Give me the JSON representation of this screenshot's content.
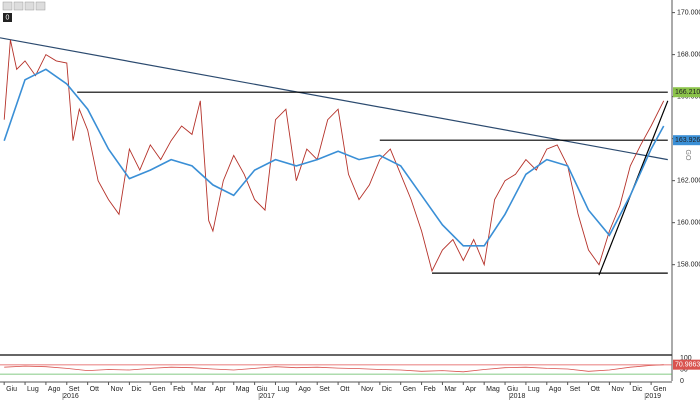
{
  "toolbar": {
    "badge": "0"
  },
  "chart_data": {
    "type": "line",
    "side_label": "GO",
    "xlim": [
      -0.2,
      32.0
    ],
    "ylim": [
      153.7,
      170.6
    ],
    "yticks": [
      {
        "value": 158,
        "label": "158.0000"
      },
      {
        "value": 160,
        "label": "160.0000"
      },
      {
        "value": 162,
        "label": "162.0000"
      },
      {
        "value": 164,
        "label": "164.0000"
      },
      {
        "value": 166,
        "label": "166.0000"
      },
      {
        "value": 168,
        "label": "168.0000"
      },
      {
        "value": 170,
        "label": "170.0000"
      }
    ],
    "xticks": [
      {
        "value": 0,
        "label": "Giu"
      },
      {
        "value": 1,
        "label": "Lug"
      },
      {
        "value": 2,
        "label": "Ago"
      },
      {
        "value": 3,
        "label": "Set"
      },
      {
        "value": 4,
        "label": "Ott"
      },
      {
        "value": 5,
        "label": "Nov"
      },
      {
        "value": 6,
        "label": "Dic"
      },
      {
        "value": 7,
        "label": "Gen"
      },
      {
        "value": 8,
        "label": "Feb"
      },
      {
        "value": 9,
        "label": "Mar"
      },
      {
        "value": 10,
        "label": "Apr"
      },
      {
        "value": 11,
        "label": "Mag"
      },
      {
        "value": 12,
        "label": "Giu"
      },
      {
        "value": 13,
        "label": "Lug"
      },
      {
        "value": 14,
        "label": "Ago"
      },
      {
        "value": 15,
        "label": "Set"
      },
      {
        "value": 16,
        "label": "Ott"
      },
      {
        "value": 17,
        "label": "Nov"
      },
      {
        "value": 18,
        "label": "Dic"
      },
      {
        "value": 19,
        "label": "Gen"
      },
      {
        "value": 20,
        "label": "Feb"
      },
      {
        "value": 21,
        "label": "Mar"
      },
      {
        "value": 22,
        "label": "Apr"
      },
      {
        "value": 23,
        "label": "Mag"
      },
      {
        "value": 24,
        "label": "Giu"
      },
      {
        "value": 25,
        "label": "Lug"
      },
      {
        "value": 26,
        "label": "Ago"
      },
      {
        "value": 27,
        "label": "Set"
      },
      {
        "value": 28,
        "label": "Ott"
      },
      {
        "value": 29,
        "label": "Nov"
      },
      {
        "value": 30,
        "label": "Dic"
      },
      {
        "value": 31,
        "label": "Gen"
      }
    ],
    "year_ticks": [
      {
        "value": 3.2,
        "label": "2016"
      },
      {
        "value": 12.6,
        "label": "2017"
      },
      {
        "value": 24.6,
        "label": "2018"
      },
      {
        "value": 31.1,
        "label": "2019"
      }
    ],
    "price": {
      "color": "#b5322a",
      "x": [
        0,
        0.3,
        0.6,
        1,
        1.5,
        2,
        2.5,
        3,
        3.3,
        3.6,
        4,
        4.5,
        5,
        5.5,
        6,
        6.5,
        7,
        7.5,
        8,
        8.5,
        9,
        9.4,
        9.8,
        10,
        10.5,
        11,
        11.5,
        12,
        12.5,
        13,
        13.5,
        14,
        14.5,
        15,
        15.5,
        16,
        16.5,
        17,
        17.5,
        18,
        18.5,
        19,
        19.5,
        20,
        20.5,
        21,
        21.5,
        22,
        22.5,
        23,
        23.5,
        24,
        24.5,
        25,
        25.5,
        26,
        26.5,
        27,
        27.5,
        28,
        28.5,
        29,
        29.5,
        30,
        30.5,
        31,
        31.6
      ],
      "values": [
        164.9,
        168.7,
        167.3,
        167.7,
        167.0,
        168.0,
        167.7,
        167.6,
        163.9,
        165.4,
        164.4,
        162.0,
        161.1,
        160.4,
        163.5,
        162.5,
        163.7,
        163.0,
        163.9,
        164.6,
        164.2,
        165.8,
        160.1,
        159.6,
        162.0,
        163.2,
        162.3,
        161.1,
        160.6,
        164.9,
        165.4,
        162.0,
        163.5,
        163.0,
        164.9,
        165.4,
        162.3,
        161.1,
        161.8,
        163.0,
        163.5,
        162.3,
        161.1,
        159.6,
        157.7,
        158.7,
        159.2,
        158.2,
        159.2,
        158.0,
        161.1,
        162.0,
        162.3,
        163.0,
        162.5,
        163.5,
        163.7,
        162.7,
        160.4,
        158.7,
        158.0,
        159.6,
        160.8,
        162.7,
        163.7,
        164.6,
        165.8
      ]
    },
    "moving_average": {
      "color": "#3a8fd6",
      "x": [
        0,
        1,
        2,
        3,
        4,
        5,
        6,
        7,
        8,
        9,
        10,
        11,
        12,
        13,
        14,
        15,
        16,
        17,
        18,
        19,
        20,
        21,
        22,
        23,
        24,
        25,
        26,
        27,
        28,
        29,
        30,
        31,
        31.6
      ],
      "values": [
        163.9,
        166.8,
        167.3,
        166.6,
        165.4,
        163.5,
        162.1,
        162.5,
        163.0,
        162.7,
        161.8,
        161.3,
        162.5,
        163.0,
        162.7,
        163.0,
        163.4,
        163.0,
        163.2,
        162.7,
        161.3,
        159.9,
        158.9,
        158.9,
        160.4,
        162.3,
        163.0,
        162.7,
        160.6,
        159.4,
        161.3,
        163.5,
        164.6
      ]
    },
    "lines": [
      {
        "color": "#2b4a6f",
        "x": [
          -0.2,
          31.8
        ],
        "y": [
          168.8,
          163.0
        ]
      },
      {
        "color": "#000000",
        "x": [
          3.5,
          31.8
        ],
        "y": [
          166.21,
          166.21
        ]
      },
      {
        "color": "#000000",
        "x": [
          18.0,
          31.8
        ],
        "y": [
          163.926,
          163.926
        ]
      },
      {
        "color": "#000000",
        "x": [
          20.5,
          31.8
        ],
        "y": [
          157.6,
          157.6
        ]
      },
      {
        "color": "#000000",
        "x": [
          28.5,
          31.8
        ],
        "y": [
          157.5,
          165.8
        ]
      }
    ],
    "price_labels": [
      {
        "value": 166.21,
        "label": "166.2100",
        "color": "#8bc34a"
      },
      {
        "value": 163.926,
        "label": "163.9260",
        "color": "#3a8fd6"
      }
    ],
    "rsi": {
      "color": "#d9534f",
      "ylim": [
        0,
        100
      ],
      "yticks": [
        0,
        50,
        100
      ],
      "levels": [
        {
          "value": 70,
          "color": "#e05050"
        },
        {
          "value": 30,
          "color": "#5cb85c"
        }
      ],
      "x": [
        0,
        1,
        2,
        3,
        4,
        5,
        6,
        7,
        8,
        9,
        10,
        11,
        12,
        13,
        14,
        15,
        16,
        17,
        18,
        19,
        20,
        21,
        22,
        23,
        24,
        25,
        26,
        27,
        28,
        29,
        30,
        31,
        31.6
      ],
      "values": [
        60,
        65,
        62,
        55,
        45,
        50,
        48,
        55,
        60,
        58,
        52,
        48,
        55,
        62,
        58,
        60,
        56,
        54,
        50,
        48,
        42,
        45,
        40,
        50,
        58,
        60,
        55,
        52,
        42,
        48,
        60,
        68,
        70.9863
      ],
      "last_label": {
        "value": 70.9863,
        "label": "70.9863"
      }
    }
  }
}
